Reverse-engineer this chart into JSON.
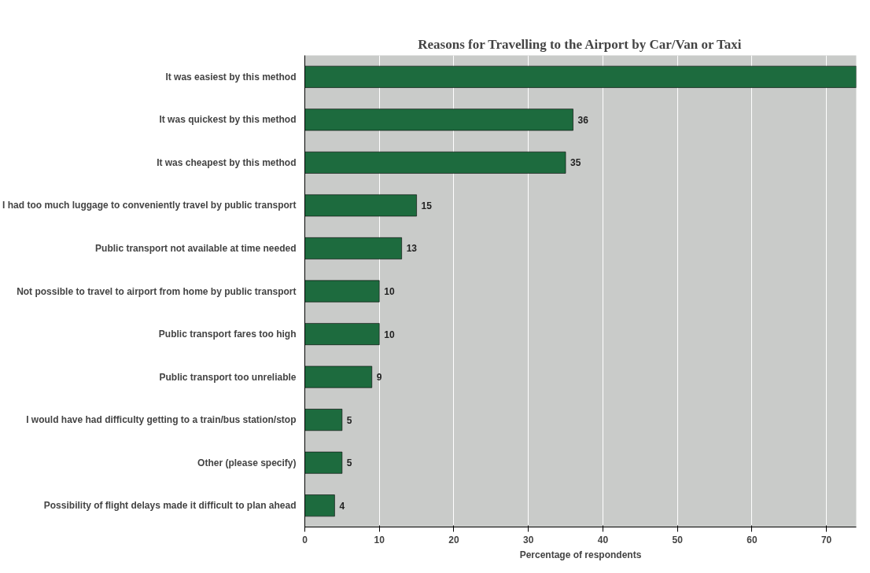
{
  "chart_data": {
    "type": "bar",
    "orientation": "horizontal",
    "title": "Reasons for Travelling to the Airport by Car/Van or Taxi",
    "xlabel": "Percentage of respondents",
    "categories": [
      "It was easiest by this method",
      "It was quickest by this method",
      "It was cheapest by this method",
      "I had too much luggage to conveniently travel by public transport",
      "Public transport not available at time needed",
      "Not possible to travel to airport from home by public transport",
      "Public transport fares too high",
      "Public transport too unreliable",
      "I would have had difficulty getting to a train/bus station/stop",
      "Other (please specify)",
      "Possibility of flight delays made it difficult to plan ahead"
    ],
    "values": [
      74,
      36,
      35,
      15,
      13,
      10,
      10,
      9,
      5,
      5,
      4
    ],
    "value_labels": [
      null,
      "36",
      "35",
      "15",
      "13",
      "10",
      "10",
      "9",
      "5",
      "5",
      "4"
    ],
    "color": "#1d6b3e",
    "xlim": [
      0,
      74
    ],
    "xticks": [
      0,
      10,
      20,
      30,
      40,
      50,
      60,
      70
    ],
    "grid": "x"
  }
}
